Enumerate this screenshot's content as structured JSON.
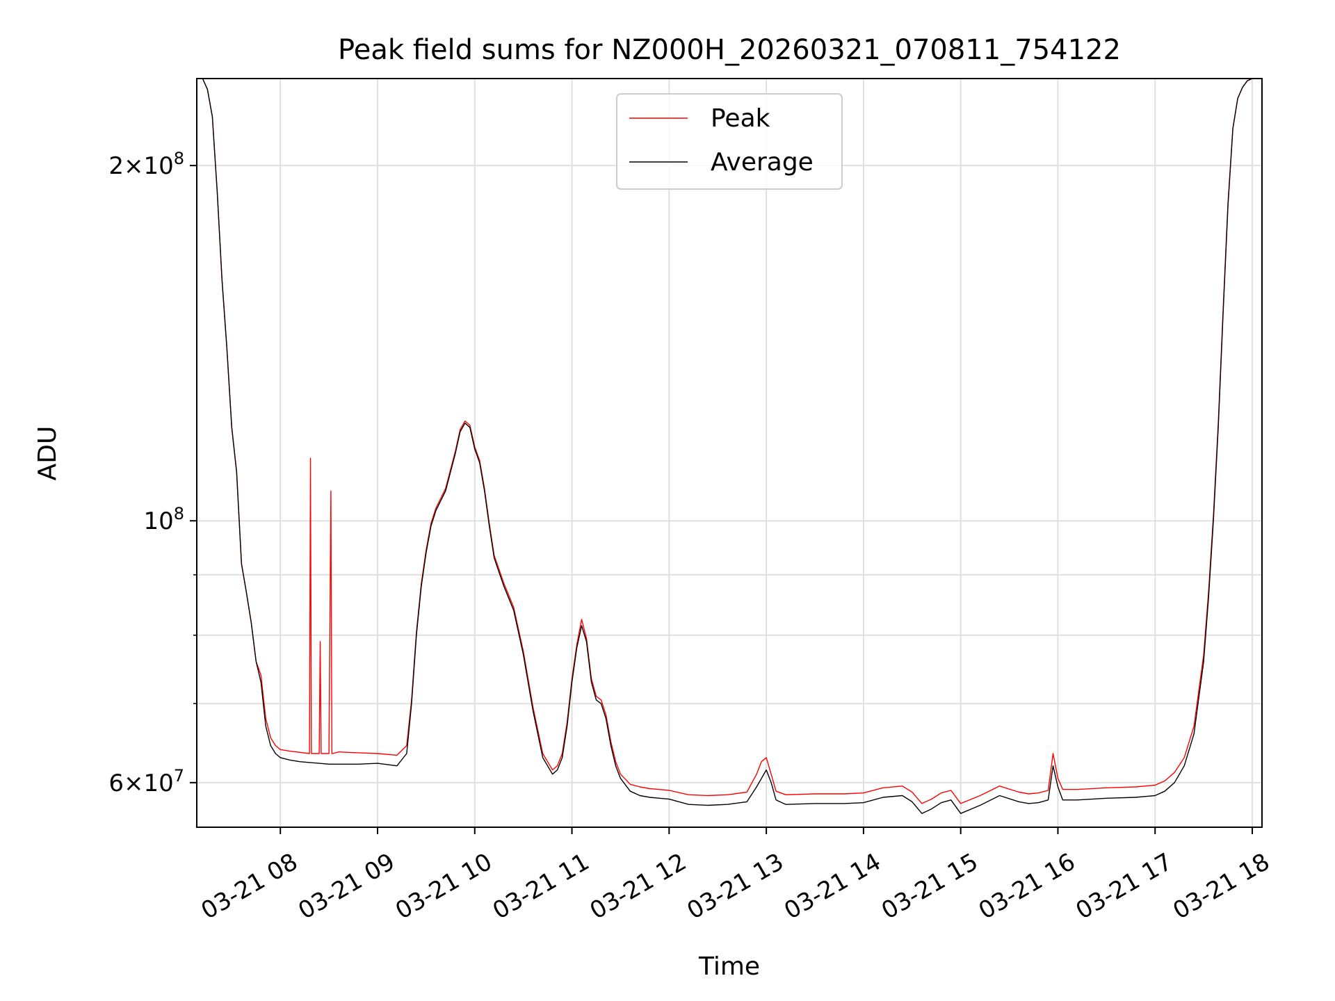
{
  "chart_data": {
    "type": "line",
    "title": "Peak field sums for NZ000H_20260321_070811_754122",
    "xlabel": "Time",
    "ylabel": "ADU",
    "yscale": "log",
    "ylim": [
      55000000,
      237000000
    ],
    "xlim_hours": [
      7.14,
      18.1
    ],
    "x_unit": "hours since 03-21 00:00",
    "grid": true,
    "legend_position": "upper-center",
    "x_ticks": [
      {
        "value": 8,
        "label": "03-21 08"
      },
      {
        "value": 9,
        "label": "03-21 09"
      },
      {
        "value": 10,
        "label": "03-21 10"
      },
      {
        "value": 11,
        "label": "03-21 11"
      },
      {
        "value": 12,
        "label": "03-21 12"
      },
      {
        "value": 13,
        "label": "03-21 13"
      },
      {
        "value": 14,
        "label": "03-21 14"
      },
      {
        "value": 15,
        "label": "03-21 15"
      },
      {
        "value": 16,
        "label": "03-21 16"
      },
      {
        "value": 17,
        "label": "03-21 17"
      },
      {
        "value": 18,
        "label": "03-21 18"
      }
    ],
    "y_ticks_major": [
      {
        "value": 60000000,
        "mantissa": "6",
        "exp": "7",
        "label": "6×10^7"
      },
      {
        "value": 100000000,
        "mantissa": "",
        "exp": "8",
        "label": "10^8"
      },
      {
        "value": 200000000,
        "mantissa": "2",
        "exp": "8",
        "label": "2×10^8"
      }
    ],
    "y_ticks_minor": [
      70000000,
      80000000,
      90000000
    ],
    "series": [
      {
        "name": "Average",
        "color": "#000000",
        "x": [
          7.14,
          7.2,
          7.25,
          7.3,
          7.35,
          7.4,
          7.45,
          7.5,
          7.55,
          7.6,
          7.65,
          7.7,
          7.75,
          7.8,
          7.85,
          7.9,
          7.95,
          8.0,
          8.1,
          8.2,
          8.3,
          8.4,
          8.5,
          8.6,
          8.8,
          9.0,
          9.2,
          9.3,
          9.35,
          9.4,
          9.45,
          9.5,
          9.55,
          9.6,
          9.7,
          9.8,
          9.85,
          9.9,
          9.95,
          10.0,
          10.05,
          10.1,
          10.15,
          10.2,
          10.3,
          10.4,
          10.5,
          10.6,
          10.7,
          10.8,
          10.85,
          10.9,
          10.95,
          11.0,
          11.05,
          11.1,
          11.15,
          11.2,
          11.25,
          11.3,
          11.35,
          11.4,
          11.45,
          11.5,
          11.6,
          11.7,
          11.8,
          11.9,
          12.0,
          12.2,
          12.4,
          12.6,
          12.8,
          12.9,
          13.0,
          13.05,
          13.1,
          13.2,
          13.5,
          13.8,
          14.0,
          14.2,
          14.4,
          14.5,
          14.6,
          14.7,
          14.8,
          14.9,
          15.0,
          15.2,
          15.4,
          15.6,
          15.7,
          15.8,
          15.9,
          15.95,
          16.0,
          16.05,
          16.2,
          16.5,
          16.8,
          17.0,
          17.1,
          17.2,
          17.3,
          17.4,
          17.5,
          17.55,
          17.6,
          17.65,
          17.7,
          17.75,
          17.8,
          17.85,
          17.9,
          17.95,
          18.0,
          18.1
        ],
        "values": [
          237000000,
          237000000,
          232000000,
          220000000,
          190000000,
          160000000,
          140000000,
          120000000,
          110000000,
          92000000,
          87000000,
          82000000,
          76000000,
          73000000,
          67000000,
          64500000,
          63500000,
          63000000,
          62700000,
          62500000,
          62400000,
          62300000,
          62200000,
          62200000,
          62200000,
          62300000,
          62000000,
          63500000,
          70000000,
          80000000,
          88000000,
          94000000,
          99000000,
          102000000,
          106000000,
          114000000,
          119000000,
          121000000,
          120000000,
          115000000,
          112000000,
          106000000,
          99000000,
          93000000,
          88000000,
          84000000,
          77000000,
          69000000,
          63000000,
          61000000,
          61500000,
          63000000,
          67000000,
          73000000,
          78000000,
          81500000,
          79000000,
          73000000,
          70500000,
          70000000,
          68000000,
          64500000,
          62000000,
          60500000,
          59000000,
          58500000,
          58300000,
          58200000,
          58100000,
          57500000,
          57400000,
          57500000,
          57800000,
          59500000,
          61500000,
          60000000,
          58000000,
          57500000,
          57600000,
          57600000,
          57700000,
          58300000,
          58500000,
          57800000,
          56500000,
          57000000,
          57700000,
          58000000,
          56500000,
          57400000,
          58500000,
          57800000,
          57600000,
          57700000,
          58000000,
          62000000,
          59500000,
          58000000,
          58000000,
          58200000,
          58300000,
          58500000,
          59000000,
          60000000,
          62000000,
          66000000,
          76000000,
          86000000,
          100000000,
          120000000,
          150000000,
          185000000,
          215000000,
          228000000,
          233000000,
          236000000,
          237000000,
          237000000
        ]
      },
      {
        "name": "Peak",
        "color": "#ff0000",
        "x": [
          7.14,
          7.2,
          7.25,
          7.3,
          7.35,
          7.4,
          7.45,
          7.5,
          7.55,
          7.6,
          7.65,
          7.7,
          7.75,
          7.8,
          7.85,
          7.9,
          7.95,
          8.0,
          8.1,
          8.3,
          8.31,
          8.32,
          8.33,
          8.4,
          8.41,
          8.42,
          8.5,
          8.52,
          8.53,
          8.54,
          8.6,
          8.8,
          9.0,
          9.2,
          9.3,
          9.35,
          9.4,
          9.45,
          9.5,
          9.55,
          9.6,
          9.7,
          9.8,
          9.85,
          9.9,
          9.95,
          10.0,
          10.05,
          10.1,
          10.15,
          10.2,
          10.3,
          10.4,
          10.5,
          10.6,
          10.7,
          10.8,
          10.85,
          10.9,
          10.95,
          11.0,
          11.05,
          11.1,
          11.15,
          11.2,
          11.25,
          11.3,
          11.35,
          11.4,
          11.45,
          11.5,
          11.6,
          11.7,
          11.8,
          11.9,
          12.0,
          12.2,
          12.4,
          12.6,
          12.8,
          12.9,
          12.95,
          13.0,
          13.05,
          13.1,
          13.2,
          13.5,
          13.8,
          14.0,
          14.2,
          14.4,
          14.5,
          14.6,
          14.7,
          14.8,
          14.9,
          15.0,
          15.2,
          15.4,
          15.6,
          15.7,
          15.8,
          15.9,
          15.95,
          16.0,
          16.05,
          16.2,
          16.5,
          16.8,
          17.0,
          17.1,
          17.2,
          17.3,
          17.4,
          17.5,
          17.55,
          17.6,
          17.65,
          17.7,
          17.75,
          17.8,
          17.85,
          17.9,
          17.95,
          18.0,
          18.1
        ],
        "values": [
          237000000,
          237000000,
          232000000,
          220000000,
          190000000,
          160000000,
          140000000,
          120000000,
          110000000,
          92000000,
          87000000,
          82000000,
          76000000,
          74000000,
          68000000,
          65500000,
          64500000,
          64000000,
          63800000,
          63500000,
          113000000,
          63500000,
          63500000,
          63500000,
          79000000,
          63500000,
          63500000,
          106000000,
          63500000,
          63500000,
          63700000,
          63600000,
          63500000,
          63300000,
          64500000,
          70500000,
          80500000,
          88500000,
          94500000,
          99500000,
          102500000,
          106500000,
          114500000,
          119500000,
          121500000,
          120500000,
          115500000,
          112500000,
          106500000,
          99500000,
          93500000,
          88500000,
          84500000,
          77500000,
          69500000,
          63500000,
          61500000,
          62000000,
          63500000,
          67500000,
          73500000,
          78500000,
          82500000,
          79500000,
          73500000,
          71000000,
          70500000,
          68500000,
          65000000,
          62500000,
          61000000,
          59800000,
          59500000,
          59300000,
          59200000,
          59100000,
          58600000,
          58500000,
          58600000,
          58900000,
          61000000,
          62500000,
          63000000,
          61000000,
          59000000,
          58600000,
          58700000,
          58700000,
          58800000,
          59400000,
          59600000,
          58900000,
          57600000,
          58100000,
          58800000,
          59100000,
          57600000,
          58500000,
          59600000,
          58900000,
          58700000,
          58800000,
          59100000,
          63500000,
          60500000,
          59200000,
          59200000,
          59400000,
          59500000,
          59700000,
          60200000,
          61200000,
          63000000,
          67000000,
          77000000,
          87000000,
          101000000,
          121000000,
          151000000,
          186000000,
          215000000,
          228000000,
          233000000,
          236000000,
          237000000,
          237000000
        ]
      }
    ]
  }
}
